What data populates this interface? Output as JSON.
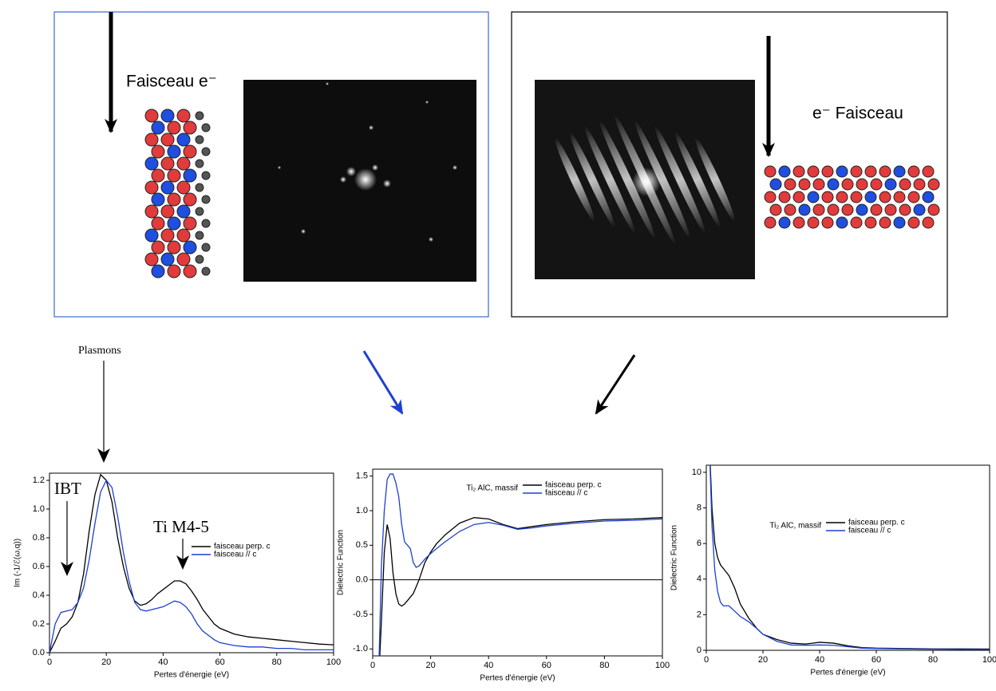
{
  "panels": [
    {
      "label": "Faisceau e⁻"
    },
    {
      "label": "e⁻ Faisceau"
    }
  ],
  "chart_data": [
    {
      "type": "line",
      "xlabel": "Pertes d'énergie (eV)",
      "ylabel": "Im (-1/ℰ(ω,q))",
      "annotations": [
        "Plasmons",
        "IBT",
        "Ti M4-5"
      ],
      "xlim": [
        0,
        100
      ],
      "xticks": [
        0,
        20,
        40,
        60,
        80,
        100
      ],
      "ylim": [
        0,
        1.25
      ],
      "yticks": [
        {
          "value": 0,
          "label": "0.0"
        },
        0.2,
        0.4,
        0.6,
        0.8,
        {
          "value": 1,
          "label": "1.0"
        },
        1.2
      ],
      "x": [
        0,
        2,
        4,
        6,
        8,
        10,
        12,
        14,
        16,
        18,
        20,
        22,
        24,
        26,
        28,
        30,
        32,
        34,
        36,
        38,
        40,
        42,
        44,
        46,
        48,
        50,
        52,
        54,
        56,
        58,
        60,
        65,
        70,
        75,
        80,
        85,
        90,
        95,
        100
      ],
      "series": [
        {
          "name": "faisceau perp. c",
          "color": "#000000",
          "values": [
            0,
            0.08,
            0.17,
            0.2,
            0.25,
            0.35,
            0.55,
            0.85,
            1.1,
            1.24,
            1.2,
            1.05,
            0.8,
            0.6,
            0.45,
            0.36,
            0.33,
            0.34,
            0.37,
            0.41,
            0.44,
            0.47,
            0.5,
            0.5,
            0.48,
            0.43,
            0.37,
            0.3,
            0.25,
            0.2,
            0.17,
            0.13,
            0.11,
            0.1,
            0.09,
            0.08,
            0.07,
            0.06,
            0.055
          ]
        },
        {
          "name": "faisceau // c",
          "color": "#1f3fd1",
          "values": [
            0,
            0.2,
            0.28,
            0.29,
            0.3,
            0.35,
            0.45,
            0.65,
            0.9,
            1.12,
            1.2,
            1.15,
            0.95,
            0.7,
            0.5,
            0.35,
            0.3,
            0.29,
            0.3,
            0.31,
            0.32,
            0.34,
            0.36,
            0.35,
            0.32,
            0.27,
            0.2,
            0.15,
            0.12,
            0.09,
            0.07,
            0.05,
            0.04,
            0.04,
            0.03,
            0.03,
            0.02,
            0.02,
            0.02
          ]
        }
      ]
    },
    {
      "type": "line",
      "xlabel": "Pertes d'énergie (eV)",
      "ylabel": "Dielectric Function",
      "legend_title": "Ti₂ AlC, massif",
      "zero_line": true,
      "xlim": [
        0,
        100
      ],
      "xticks": [
        0,
        20,
        40,
        60,
        80,
        100
      ],
      "ylim": [
        -1.1,
        1.6
      ],
      "yticks": [
        {
          "value": -1,
          "label": "-1.0"
        },
        -0.5,
        {
          "value": 0,
          "label": "0.0"
        },
        0.5,
        {
          "value": 1,
          "label": "1.0"
        },
        1.5
      ],
      "x": [
        2,
        3,
        4,
        5,
        6,
        7,
        8,
        9,
        10,
        11,
        12,
        13,
        14,
        15,
        16,
        18,
        20,
        22,
        25,
        30,
        35,
        40,
        45,
        50,
        55,
        60,
        70,
        80,
        90,
        100
      ],
      "series": [
        {
          "name": "faisceau perp. c",
          "color": "#000000",
          "values": [
            -1.5,
            -0.6,
            0.4,
            0.8,
            0.6,
            0.1,
            -0.2,
            -0.35,
            -0.38,
            -0.35,
            -0.3,
            -0.25,
            -0.2,
            -0.1,
            0,
            0.25,
            0.4,
            0.52,
            0.65,
            0.82,
            0.9,
            0.88,
            0.8,
            0.74,
            0.77,
            0.8,
            0.84,
            0.87,
            0.88,
            0.9
          ]
        },
        {
          "name": "faisceau // c",
          "color": "#1f3fd1",
          "values": [
            -1.5,
            0.2,
            1.0,
            1.45,
            1.53,
            1.53,
            1.4,
            1.2,
            0.8,
            0.55,
            0.5,
            0.45,
            0.25,
            0.18,
            0.2,
            0.3,
            0.38,
            0.45,
            0.55,
            0.7,
            0.8,
            0.83,
            0.79,
            0.73,
            0.75,
            0.78,
            0.82,
            0.85,
            0.86,
            0.88
          ]
        }
      ]
    },
    {
      "type": "line",
      "xlabel": "Pertes d'énergie (eV)",
      "ylabel": "Dielectric Function",
      "legend_title": "Ti₂ AlC, massif",
      "xlim": [
        0,
        100
      ],
      "xticks": [
        0,
        20,
        40,
        60,
        80,
        100
      ],
      "ylim": [
        0,
        10.4
      ],
      "yticks": [
        0,
        2,
        4,
        6,
        8,
        10
      ],
      "x": [
        1,
        2,
        3,
        4,
        5,
        6,
        8,
        10,
        12,
        15,
        18,
        20,
        25,
        30,
        35,
        40,
        45,
        50,
        55,
        60,
        70,
        80,
        90,
        100
      ],
      "series": [
        {
          "name": "faisceau perp. c",
          "color": "#000000",
          "values": [
            12,
            8,
            6,
            5.2,
            4.8,
            4.6,
            4.2,
            3.5,
            2.6,
            1.8,
            1.2,
            0.9,
            0.6,
            0.4,
            0.35,
            0.45,
            0.4,
            0.25,
            0.15,
            0.12,
            0.1,
            0.08,
            0.08,
            0.07
          ]
        },
        {
          "name": "faisceau // c",
          "color": "#1f3fd1",
          "values": [
            12,
            7,
            4.5,
            3.3,
            2.7,
            2.5,
            2.5,
            2.2,
            1.9,
            1.6,
            1.2,
            0.9,
            0.5,
            0.3,
            0.28,
            0.3,
            0.28,
            0.2,
            0.12,
            0.1,
            0.08,
            0.06,
            0.05,
            0.05
          ]
        }
      ]
    }
  ]
}
